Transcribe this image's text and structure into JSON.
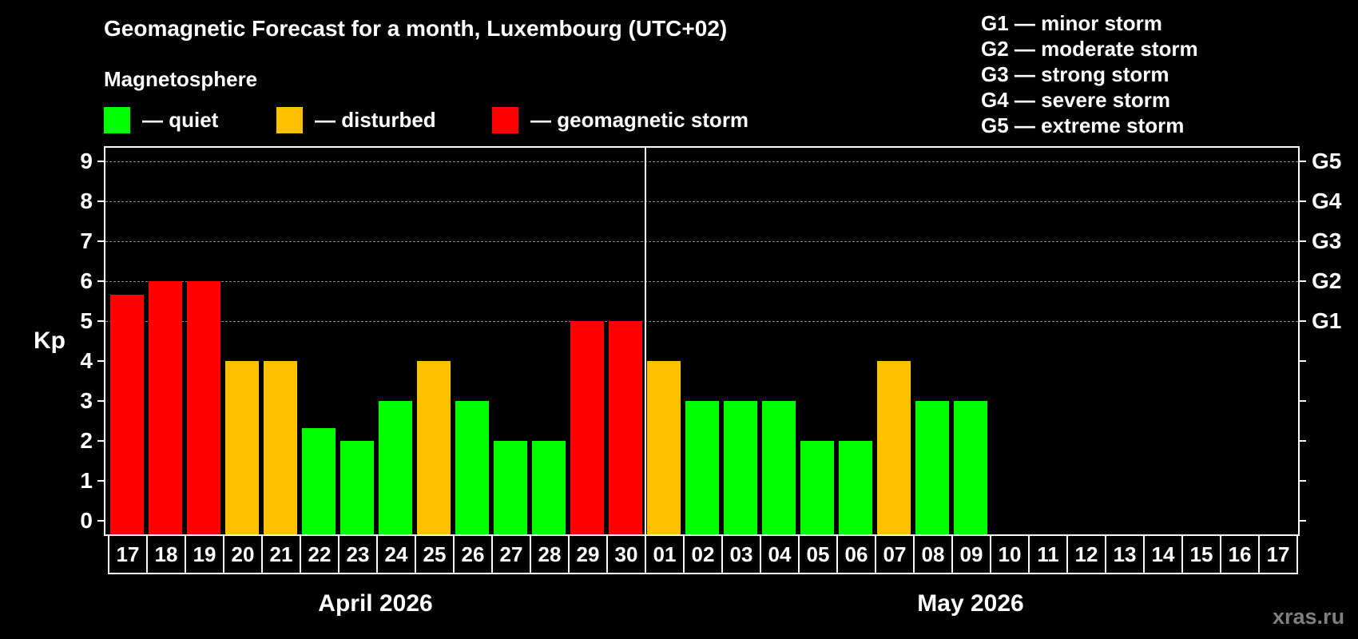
{
  "title": "Geomagnetic Forecast for a month, Luxembourg (UTC+02)",
  "subtitle": "Magnetosphere",
  "legend": [
    {
      "label": "— quiet",
      "color": "#00ff00"
    },
    {
      "label": "— disturbed",
      "color": "#ffc000"
    },
    {
      "label": "— geomagnetic storm",
      "color": "#ff0000"
    }
  ],
  "storm_scale": [
    "G1 — minor storm",
    "G2 — moderate storm",
    "G3 — strong storm",
    "G4 — severe storm",
    "G5 — extreme storm"
  ],
  "axis": {
    "ylabel": "Kp",
    "yticks": [
      "0",
      "1",
      "2",
      "3",
      "4",
      "5",
      "6",
      "7",
      "8",
      "9"
    ],
    "right_labels": {
      "5": "G1",
      "6": "G2",
      "7": "G3",
      "8": "G4",
      "9": "G5"
    }
  },
  "months": [
    {
      "label": "April 2026"
    },
    {
      "label": "May 2026"
    }
  ],
  "watermark": "xras.ru",
  "colors": {
    "quiet": "#00ff00",
    "disturbed": "#ffc000",
    "storm": "#ff0000",
    "grid": "#8a8a8a",
    "watermark": "#7f7f7f"
  },
  "chart_data": {
    "type": "bar",
    "title": "Geomagnetic Forecast for a month, Luxembourg (UTC+02)",
    "subtitle": "Magnetosphere",
    "xlabel": "",
    "ylabel": "Kp",
    "ylim": [
      0,
      9
    ],
    "grid": true,
    "legend_position": "top",
    "categories": [
      "17",
      "18",
      "19",
      "20",
      "21",
      "22",
      "23",
      "24",
      "25",
      "26",
      "27",
      "28",
      "29",
      "30",
      "01",
      "02",
      "03",
      "04",
      "05",
      "06",
      "07",
      "08",
      "09",
      "10",
      "11",
      "12",
      "13",
      "14",
      "15",
      "16",
      "17"
    ],
    "month_groups": [
      {
        "label": "April 2026",
        "start": 0,
        "end": 13
      },
      {
        "label": "May 2026",
        "start": 14,
        "end": 30
      }
    ],
    "values": [
      5.67,
      6,
      6,
      4,
      4,
      2.33,
      2,
      3,
      4,
      3,
      2,
      2,
      5,
      5,
      4,
      3,
      3,
      3,
      2,
      2,
      4,
      3,
      3,
      null,
      null,
      null,
      null,
      null,
      null,
      null,
      null
    ],
    "status": [
      "storm",
      "storm",
      "storm",
      "disturbed",
      "disturbed",
      "quiet",
      "quiet",
      "quiet",
      "disturbed",
      "quiet",
      "quiet",
      "quiet",
      "storm",
      "storm",
      "disturbed",
      "quiet",
      "quiet",
      "quiet",
      "quiet",
      "quiet",
      "disturbed",
      "quiet",
      "quiet",
      null,
      null,
      null,
      null,
      null,
      null,
      null,
      null
    ],
    "secondary_axis": {
      "5": "G1",
      "6": "G2",
      "7": "G3",
      "8": "G4",
      "9": "G5"
    },
    "annotations": [
      "xras.ru"
    ]
  }
}
